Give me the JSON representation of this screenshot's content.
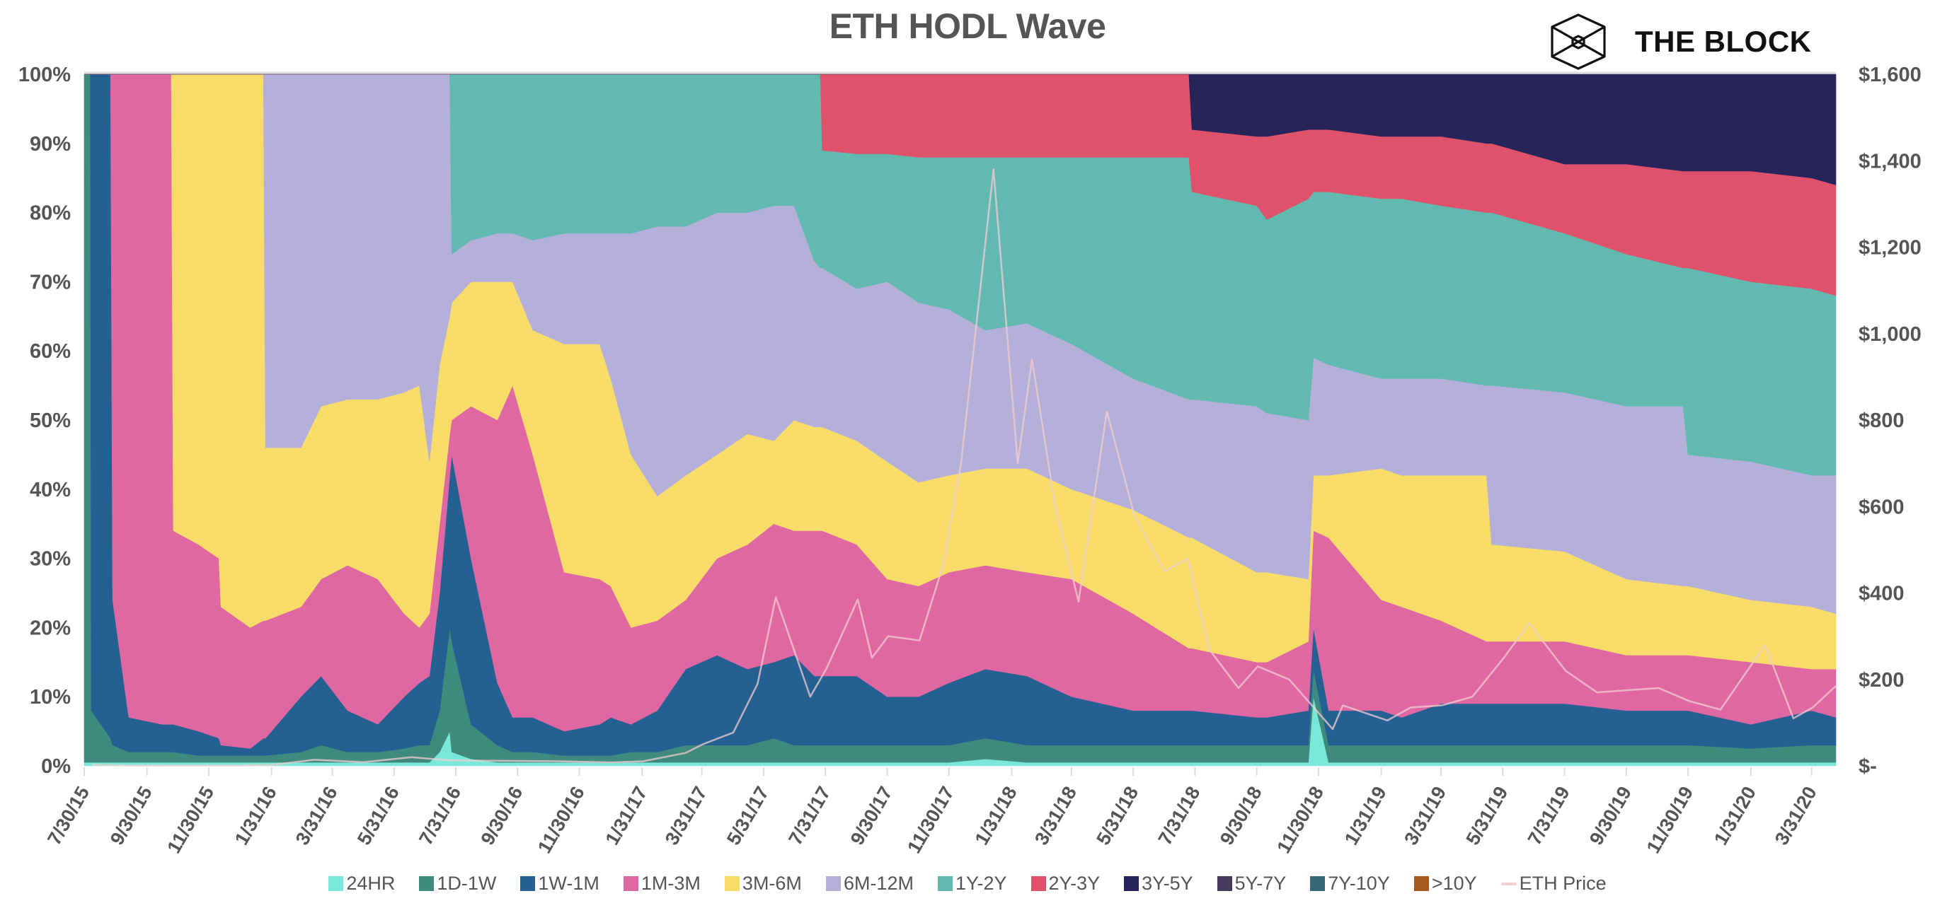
{
  "title": "ETH HODL Wave",
  "logo": {
    "text": "THE BLOCK",
    "icon": "cube-icon"
  },
  "chart_data": {
    "type": "area",
    "stacked": true,
    "title": "ETH HODL Wave",
    "xlabel": "",
    "ylabel": "",
    "y_left": {
      "range": [
        0,
        100
      ],
      "unit": "%",
      "ticks": [
        "0%",
        "10%",
        "20%",
        "30%",
        "40%",
        "50%",
        "60%",
        "70%",
        "80%",
        "90%",
        "100%"
      ]
    },
    "y_right": {
      "range": [
        0,
        1600
      ],
      "ticks": [
        "$-",
        "$200",
        "$400",
        "$600",
        "$800",
        "$1,000",
        "$1,200",
        "$1,400",
        "$1,600"
      ]
    },
    "x_range": [
      "2015-07-30",
      "2020-04-24"
    ],
    "x_ticks": [
      "7/30/15",
      "9/30/15",
      "11/30/15",
      "1/31/16",
      "3/31/16",
      "5/31/16",
      "7/31/16",
      "9/30/16",
      "11/30/16",
      "1/31/17",
      "3/31/17",
      "5/31/17",
      "7/31/17",
      "9/30/17",
      "11/30/17",
      "1/31/18",
      "3/31/18",
      "5/31/18",
      "7/31/18",
      "9/30/18",
      "11/30/18",
      "1/31/19",
      "3/31/19",
      "5/31/19",
      "7/31/19",
      "9/30/19",
      "11/30/19",
      "1/31/20",
      "3/31/20"
    ],
    "x_tick_dates": [
      "2015-07-30",
      "2015-09-30",
      "2015-11-30",
      "2016-01-31",
      "2016-03-31",
      "2016-05-31",
      "2016-07-31",
      "2016-09-30",
      "2016-11-30",
      "2017-01-31",
      "2017-03-31",
      "2017-05-31",
      "2017-07-31",
      "2017-09-30",
      "2017-11-30",
      "2018-01-31",
      "2018-03-31",
      "2018-05-31",
      "2018-07-31",
      "2018-09-30",
      "2018-11-30",
      "2019-01-31",
      "2019-03-31",
      "2019-05-31",
      "2019-07-31",
      "2019-09-30",
      "2019-11-30",
      "2020-01-31",
      "2020-03-31"
    ],
    "grid": false,
    "legend_position": "bottom",
    "dates": [
      "2015-07-30",
      "2015-08-05",
      "2015-08-06",
      "2015-08-25",
      "2015-08-27",
      "2015-09-12",
      "2015-10-15",
      "2015-10-24",
      "2015-10-26",
      "2015-11-20",
      "2015-12-10",
      "2015-12-12",
      "2016-01-10",
      "2016-01-23",
      "2016-01-25",
      "2016-02-29",
      "2016-03-20",
      "2016-04-15",
      "2016-05-15",
      "2016-06-10",
      "2016-06-25",
      "2016-07-05",
      "2016-07-15",
      "2016-07-25",
      "2016-07-27",
      "2016-08-15",
      "2016-09-10",
      "2016-09-25",
      "2016-10-15",
      "2016-11-15",
      "2016-12-20",
      "2016-12-31",
      "2017-01-20",
      "2017-02-15",
      "2017-03-15",
      "2017-04-15",
      "2017-05-15",
      "2017-06-10",
      "2017-06-30",
      "2017-07-20",
      "2017-07-26",
      "2017-07-28",
      "2017-08-31",
      "2017-09-30",
      "2017-10-31",
      "2017-11-30",
      "2018-01-05",
      "2018-02-15",
      "2018-03-31",
      "2018-05-31",
      "2018-07-25",
      "2018-07-28",
      "2018-09-30",
      "2018-10-10",
      "2018-11-20",
      "2018-11-25",
      "2018-12-10",
      "2019-01-31",
      "2019-02-20",
      "2019-03-31",
      "2019-05-15",
      "2019-05-20",
      "2019-07-31",
      "2019-09-30",
      "2019-11-25",
      "2019-11-30",
      "2020-01-31",
      "2020-03-31",
      "2020-04-24"
    ],
    "series": [
      {
        "name": "24HR",
        "color": "#7ae8d8",
        "values": [
          0.5,
          0.5,
          0.5,
          0.5,
          0.5,
          0.5,
          0.5,
          0.5,
          0.5,
          0.5,
          0.5,
          0.5,
          0.5,
          0.5,
          0.5,
          0.5,
          0.5,
          0.5,
          0.5,
          0.5,
          0.5,
          0.5,
          2,
          5,
          2,
          1,
          0.5,
          0.5,
          0.5,
          0.5,
          0.5,
          0.5,
          0.5,
          0.5,
          0.5,
          0.5,
          0.5,
          0.5,
          0.5,
          0.5,
          0.5,
          0.5,
          0.5,
          0.5,
          0.5,
          0.5,
          1,
          0.5,
          0.5,
          0.5,
          0.5,
          0.5,
          0.5,
          0.5,
          0.5,
          10,
          0.5,
          0.5,
          0.5,
          0.5,
          0.5,
          0.5,
          0.5,
          0.5,
          0.5,
          0.5,
          0.5,
          0.5,
          0.5
        ]
      },
      {
        "name": "1D-1W",
        "color": "#3f8a7c",
        "values": [
          99.5,
          99.5,
          7.5,
          3.5,
          2.5,
          1.5,
          1.5,
          1.5,
          1.5,
          1,
          1,
          1,
          1,
          1,
          1,
          1.5,
          2.5,
          1.5,
          1.5,
          2,
          2.5,
          2.5,
          6,
          15,
          16,
          5,
          2.5,
          1.5,
          1.5,
          1,
          1,
          1,
          1.5,
          1.5,
          2.5,
          2.5,
          2.5,
          3.5,
          2.5,
          2.5,
          2.5,
          2.5,
          2.5,
          2.5,
          2.5,
          2.5,
          3,
          2.5,
          2.5,
          2.5,
          2.5,
          2.5,
          2.5,
          2.5,
          2.5,
          4,
          2.5,
          2.5,
          2.5,
          2.5,
          2.5,
          2.5,
          2.5,
          2.5,
          2.5,
          2.5,
          2,
          2.5,
          2.5
        ]
      },
      {
        "name": "1W-1M",
        "color": "#246192",
        "values": [
          0,
          0,
          92,
          96,
          21,
          5,
          4,
          4,
          4,
          3.5,
          2.5,
          1.5,
          1,
          2.5,
          2.5,
          8,
          10,
          6,
          4,
          7.5,
          9,
          10,
          17,
          22,
          27,
          24,
          9,
          5,
          5,
          3.5,
          4.5,
          5.5,
          4,
          6,
          11,
          13,
          11,
          11,
          13,
          10,
          10,
          10,
          10,
          7,
          7,
          9,
          10,
          10,
          7,
          5,
          5,
          5,
          4,
          4,
          5,
          6,
          5,
          5,
          4,
          6,
          6,
          6,
          6,
          5,
          5,
          5,
          3.5,
          5,
          4
        ]
      },
      {
        "name": "1M-3M",
        "color": "#df68a3",
        "values": [
          0,
          0,
          0,
          0,
          76,
          93,
          94,
          94,
          28,
          27,
          26,
          20,
          17.5,
          17,
          17,
          13,
          14,
          21,
          21,
          12,
          8,
          9,
          10,
          6,
          5,
          22,
          38,
          48,
          38,
          23,
          21,
          19,
          14,
          13,
          10,
          14,
          18,
          20,
          18,
          21,
          21,
          21,
          19,
          17,
          16,
          16,
          15,
          15,
          17,
          14,
          9,
          9,
          8,
          8,
          10,
          14,
          25,
          16,
          16,
          12,
          9,
          9,
          9,
          8,
          8,
          8,
          9,
          6,
          7
        ]
      },
      {
        "name": "3M-6M",
        "color": "#f7dc6a",
        "values": [
          0,
          0,
          0,
          0,
          0,
          0,
          0,
          0,
          66,
          68,
          70,
          77,
          80,
          79,
          25,
          23,
          25,
          24,
          26,
          32,
          35,
          22,
          23,
          17,
          17,
          18,
          20,
          15,
          18,
          33,
          34,
          30,
          25,
          18,
          18,
          15,
          16,
          12,
          16,
          15,
          15,
          15,
          15,
          17,
          15,
          14,
          14,
          15,
          13,
          15,
          16,
          16,
          13,
          13,
          9,
          8,
          9,
          19,
          19,
          21,
          24,
          14,
          13,
          11,
          10,
          10,
          9,
          9,
          8
        ]
      },
      {
        "name": "6M-12M",
        "color": "#b5b0da",
        "values": [
          0,
          0,
          0,
          0,
          0,
          0,
          0,
          0,
          0,
          0,
          0,
          0,
          0,
          0,
          54,
          54,
          48,
          47,
          47,
          46,
          45,
          56,
          42,
          35,
          7,
          6,
          7,
          7,
          13,
          16,
          16,
          21,
          32,
          39,
          36,
          35,
          32,
          34,
          31,
          24,
          23,
          23,
          22,
          26,
          26,
          24,
          20,
          21,
          21,
          19,
          20,
          20,
          24,
          23,
          23,
          17,
          16,
          13,
          14,
          14,
          13,
          23,
          23,
          25,
          26,
          19,
          20,
          19,
          20
        ]
      },
      {
        "name": "1Y-2Y",
        "color": "#62b9b0",
        "values": [
          0,
          0,
          0,
          0,
          0,
          0,
          0,
          0,
          0,
          0,
          0,
          0,
          0,
          0,
          0,
          0,
          0,
          0,
          0,
          0,
          0,
          0,
          0,
          0,
          26,
          24,
          23,
          23,
          24,
          23,
          23,
          23,
          23,
          22,
          22,
          20,
          20,
          19,
          19,
          27,
          28,
          17,
          19.5,
          18.5,
          21,
          22,
          25,
          24,
          27,
          32,
          35,
          30,
          29,
          28,
          32,
          24,
          25,
          26,
          26,
          25,
          25,
          25,
          23,
          22,
          20,
          27,
          26,
          27,
          26
        ]
      },
      {
        "name": "2Y-3Y",
        "color": "#e0526b",
        "values": [
          0,
          0,
          0,
          0,
          0,
          0,
          0,
          0,
          0,
          0,
          0,
          0,
          0,
          0,
          0,
          0,
          0,
          0,
          0,
          0,
          0,
          0,
          0,
          0,
          0,
          0,
          0,
          0,
          0,
          0,
          0,
          0,
          0,
          0,
          0,
          0,
          0,
          0,
          0,
          0,
          0,
          11,
          11.5,
          11.5,
          12,
          12,
          12,
          12,
          12,
          12,
          12,
          9,
          10,
          12,
          10,
          9,
          9,
          9,
          9,
          10,
          10,
          10,
          10,
          13,
          14,
          14,
          16,
          16,
          16
        ]
      },
      {
        "name": "3Y-5Y",
        "color": "#262459",
        "values": [
          0,
          0,
          0,
          0,
          0,
          0,
          0,
          0,
          0,
          0,
          0,
          0,
          0,
          0,
          0,
          0,
          0,
          0,
          0,
          0,
          0,
          0,
          0,
          0,
          0,
          0,
          0,
          0,
          0,
          0,
          0,
          0,
          0,
          0,
          0,
          0,
          0,
          0,
          0,
          0,
          0,
          0,
          0,
          0,
          0,
          0,
          0,
          0,
          0,
          0,
          0,
          8,
          9,
          9,
          8,
          8,
          8,
          9,
          9,
          9,
          10,
          10,
          13,
          13,
          14,
          14,
          14,
          15,
          16
        ]
      },
      {
        "name": "5Y-7Y",
        "color": "#463a60"
      },
      {
        "name": "7Y-10Y",
        "color": "#376878"
      },
      {
        "name": ">10Y",
        "color": "#a65a20"
      }
    ],
    "price_series": {
      "name": "ETH Price",
      "color": "#f2cdd1",
      "axis": "right",
      "dates": [
        "2015-08-07",
        "2015-09-01",
        "2015-10-01",
        "2015-11-01",
        "2016-01-01",
        "2016-02-01",
        "2016-03-13",
        "2016-05-01",
        "2016-06-17",
        "2016-07-24",
        "2016-09-01",
        "2016-11-01",
        "2017-01-01",
        "2017-02-01",
        "2017-03-15",
        "2017-04-01",
        "2017-05-01",
        "2017-05-25",
        "2017-06-12",
        "2017-07-16",
        "2017-08-01",
        "2017-09-01",
        "2017-09-15",
        "2017-10-01",
        "2017-11-01",
        "2017-11-25",
        "2017-12-12",
        "2018-01-13",
        "2018-02-06",
        "2018-02-20",
        "2018-03-15",
        "2018-04-07",
        "2018-05-05",
        "2018-06-01",
        "2018-07-01",
        "2018-07-24",
        "2018-08-14",
        "2018-09-12",
        "2018-10-01",
        "2018-11-01",
        "2018-12-14",
        "2018-12-24",
        "2019-02-06",
        "2019-03-01",
        "2019-04-01",
        "2019-05-01",
        "2019-06-01",
        "2019-06-26",
        "2019-08-01",
        "2019-09-01",
        "2019-10-01",
        "2019-11-01",
        "2019-12-01",
        "2020-01-01",
        "2020-02-14",
        "2020-03-13",
        "2020-04-01",
        "2020-04-24"
      ],
      "values": [
        2.8,
        1.3,
        0.7,
        1.0,
        0.95,
        2.3,
        14,
        8.5,
        20,
        13,
        12,
        11,
        8,
        10.7,
        30,
        50,
        77,
        190,
        390,
        160,
        225,
        385,
        250,
        300,
        290,
        470,
        700,
        1380,
        700,
        940,
        600,
        380,
        820,
        580,
        450,
        480,
        270,
        180,
        230,
        200,
        85,
        140,
        105,
        135,
        140,
        160,
        250,
        330,
        220,
        170,
        175,
        180,
        150,
        130,
        280,
        110,
        135,
        185
      ]
    }
  }
}
